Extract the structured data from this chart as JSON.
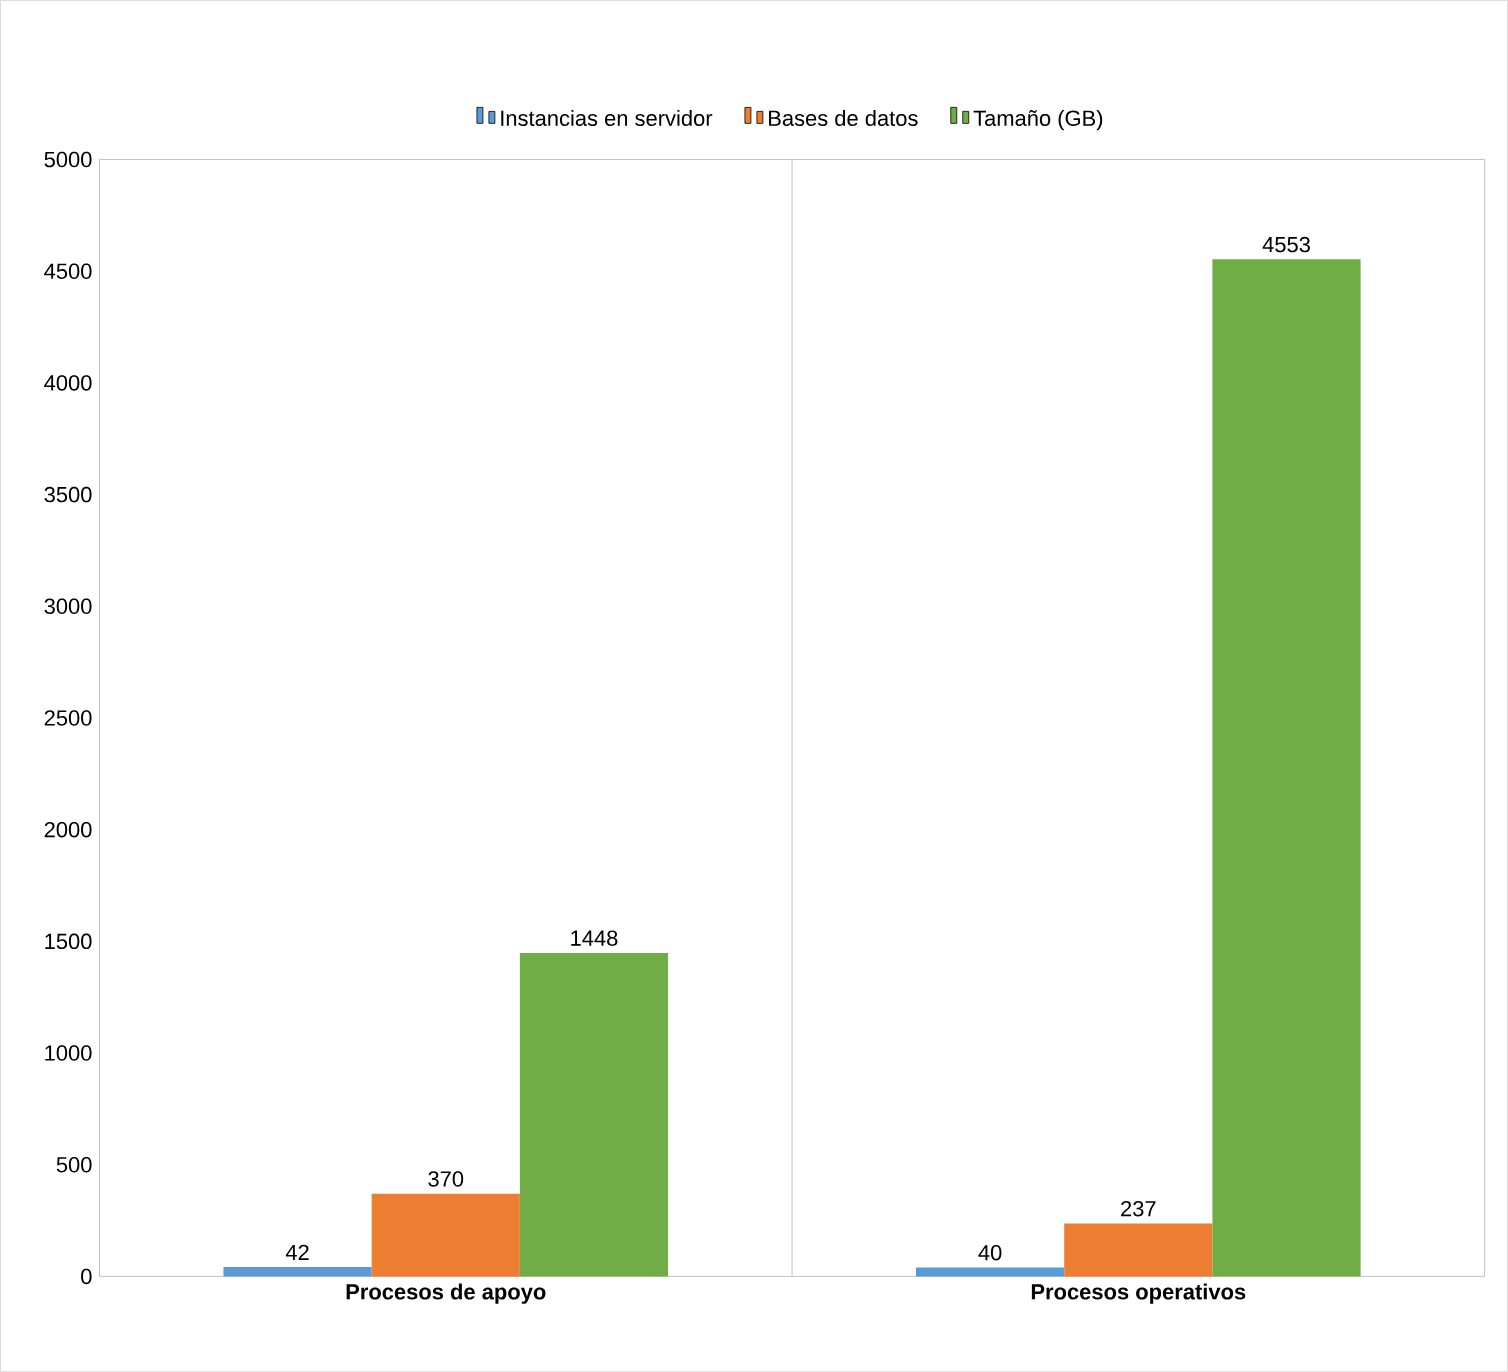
{
  "chart_data": {
    "type": "bar",
    "categories": [
      "Procesos de apoyo",
      "Procesos operativos"
    ],
    "series": [
      {
        "name": "Instancias en servidor",
        "color": "#5b9bd5",
        "values": [
          42,
          40
        ]
      },
      {
        "name": "Bases de datos",
        "color": "#ed7d31",
        "values": [
          370,
          237
        ]
      },
      {
        "name": "Tamaño (GB)",
        "color": "#70ad47",
        "values": [
          1448,
          4553
        ]
      }
    ],
    "ylim": [
      0,
      5000
    ],
    "yticks": [
      0,
      500,
      1000,
      1500,
      2000,
      2500,
      3000,
      3500,
      4000,
      4500,
      5000
    ],
    "data_labels": true,
    "legend": "top",
    "grid": false
  }
}
